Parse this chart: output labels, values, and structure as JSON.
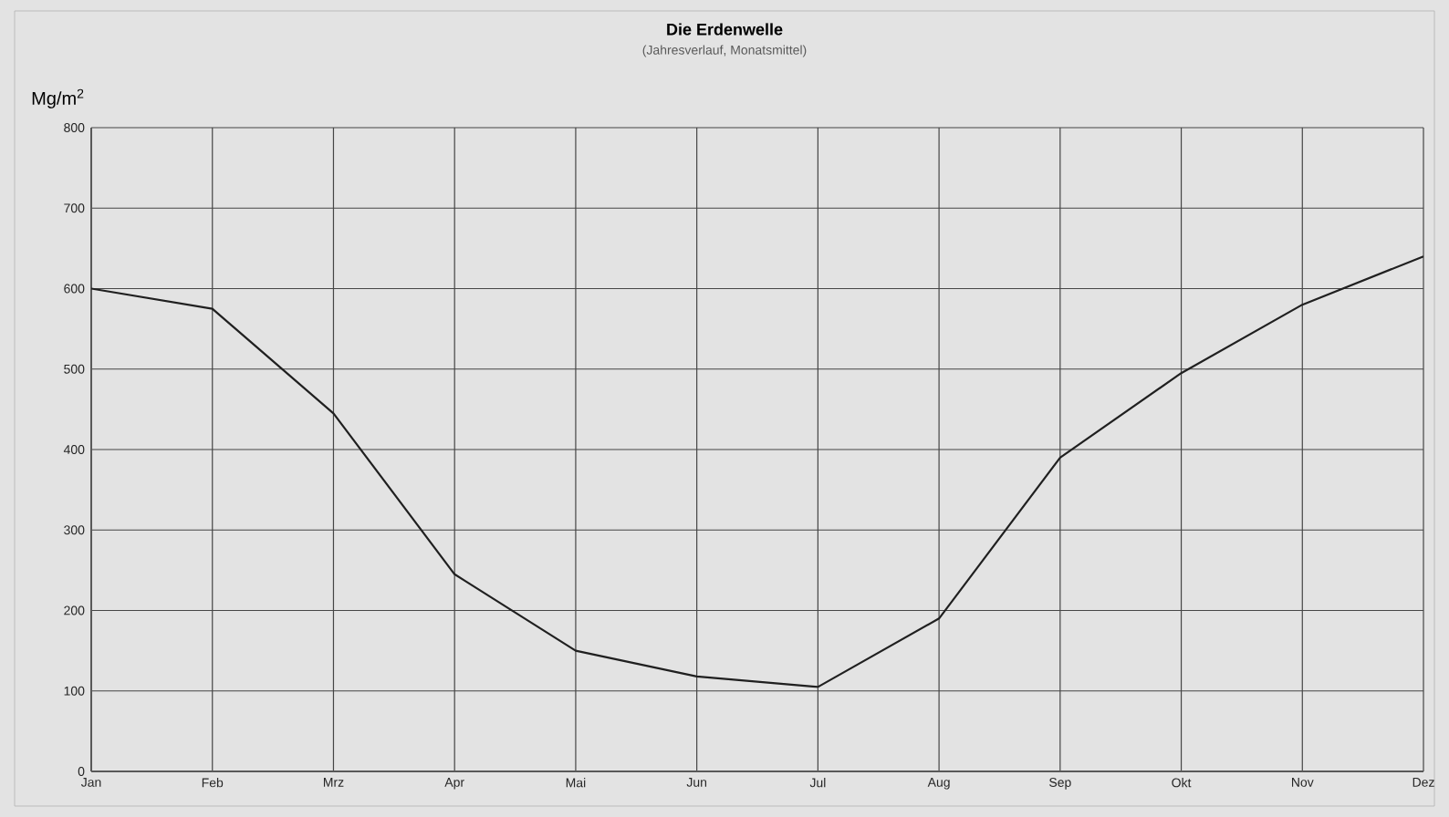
{
  "chart_data": {
    "type": "line",
    "title": "Die Erdenwelle",
    "subtitle": "(Jahresverlauf, Monatsmittel)",
    "ylabel": "Mg/m$^{2}$",
    "categories": [
      "Jan",
      "Feb",
      "Mrz",
      "Apr",
      "Mai",
      "Jun",
      "Jul",
      "Aug",
      "Sep",
      "Okt",
      "Nov",
      "Dez"
    ],
    "series": [
      {
        "color": "#202020",
        "values": [
          600,
          575,
          445,
          245,
          150,
          118,
          105,
          190,
          390,
          495,
          580,
          640
        ]
      }
    ],
    "ylim": [
      0,
      800
    ],
    "yticks": [
      0,
      100,
      200,
      300,
      400,
      500,
      600,
      700,
      800
    ],
    "grid": true,
    "marker": "none",
    "line_style": "solid"
  }
}
